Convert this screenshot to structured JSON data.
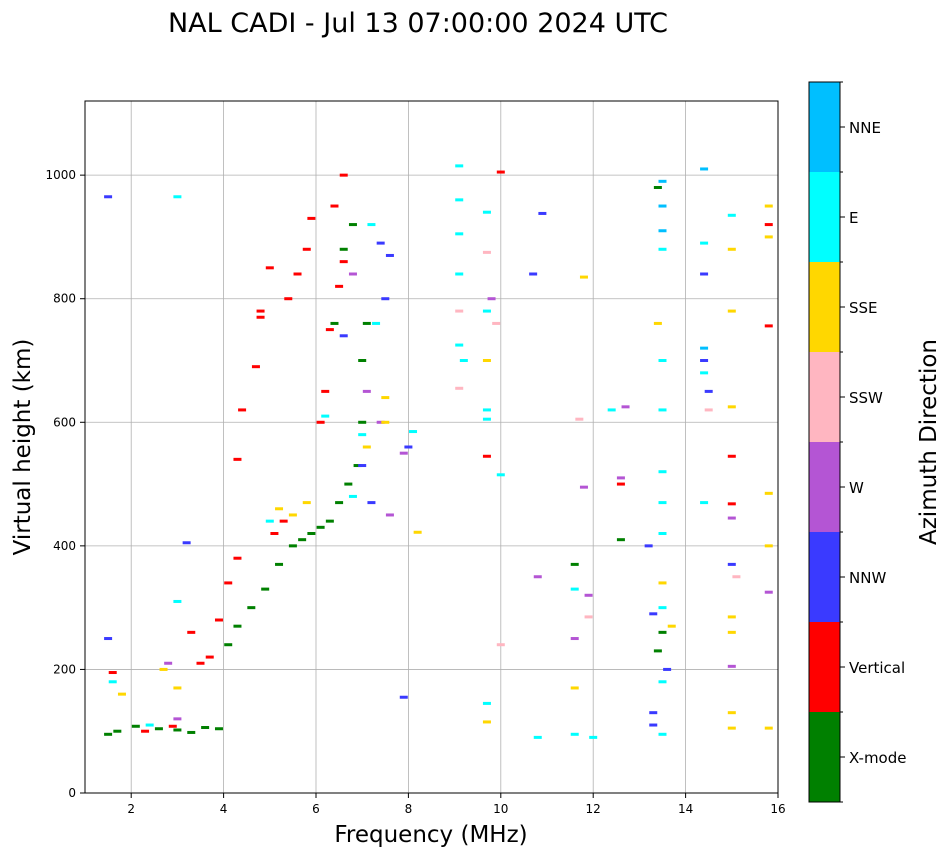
{
  "chart_data": {
    "type": "scatter",
    "title": "NAL CADI - Jul 13 07:00:00 2024 UTC",
    "xlabel": "Frequency (MHz)",
    "ylabel": "Virtual height (km)",
    "xlim": [
      1,
      16
    ],
    "ylim": [
      0,
      1120
    ],
    "xticks": [
      2,
      4,
      6,
      8,
      10,
      12,
      14,
      16
    ],
    "yticks": [
      0,
      200,
      400,
      600,
      800,
      1000
    ],
    "grid": true,
    "legend_position": "right colorbar",
    "colorbar": {
      "label": "Azimuth Direction",
      "categories": [
        {
          "name": "X-mode",
          "color": "#008000"
        },
        {
          "name": "Vertical",
          "color": "#ff0000"
        },
        {
          "name": "NNW",
          "color": "#3a3aff"
        },
        {
          "name": "W",
          "color": "#b455d4"
        },
        {
          "name": "SSW",
          "color": "#ffb6c1"
        },
        {
          "name": "SSE",
          "color": "#ffd700"
        },
        {
          "name": "E",
          "color": "#00ffff"
        },
        {
          "name": "NNE",
          "color": "#00bfff"
        }
      ]
    },
    "series": [
      {
        "name": "X-mode",
        "points": [
          [
            1.5,
            95
          ],
          [
            1.7,
            100
          ],
          [
            2.1,
            108
          ],
          [
            2.6,
            104
          ],
          [
            3.0,
            102
          ],
          [
            3.3,
            98
          ],
          [
            3.6,
            106
          ],
          [
            3.9,
            104
          ],
          [
            4.1,
            240
          ],
          [
            4.3,
            270
          ],
          [
            4.6,
            300
          ],
          [
            4.9,
            330
          ],
          [
            5.2,
            370
          ],
          [
            5.5,
            400
          ],
          [
            5.7,
            410
          ],
          [
            5.9,
            420
          ],
          [
            6.1,
            430
          ],
          [
            6.3,
            440
          ],
          [
            6.5,
            470
          ],
          [
            6.7,
            500
          ],
          [
            6.9,
            530
          ],
          [
            7.0,
            600
          ],
          [
            7.0,
            700
          ],
          [
            6.6,
            880
          ],
          [
            6.8,
            920
          ],
          [
            6.4,
            760
          ],
          [
            7.1,
            760
          ],
          [
            11.6,
            370
          ],
          [
            12.6,
            410
          ],
          [
            13.4,
            230
          ],
          [
            13.4,
            980
          ],
          [
            13.5,
            260
          ]
        ]
      },
      {
        "name": "Vertical",
        "points": [
          [
            1.6,
            195
          ],
          [
            2.3,
            100
          ],
          [
            2.9,
            108
          ],
          [
            3.3,
            260
          ],
          [
            3.5,
            210
          ],
          [
            3.7,
            220
          ],
          [
            3.9,
            280
          ],
          [
            4.1,
            340
          ],
          [
            4.3,
            380
          ],
          [
            4.3,
            540
          ],
          [
            4.4,
            620
          ],
          [
            4.7,
            690
          ],
          [
            4.8,
            770
          ],
          [
            4.8,
            780
          ],
          [
            5.0,
            850
          ],
          [
            5.4,
            800
          ],
          [
            5.6,
            840
          ],
          [
            5.8,
            880
          ],
          [
            5.9,
            930
          ],
          [
            6.1,
            600
          ],
          [
            6.2,
            650
          ],
          [
            6.3,
            750
          ],
          [
            6.5,
            820
          ],
          [
            6.6,
            860
          ],
          [
            6.4,
            950
          ],
          [
            6.6,
            1000
          ],
          [
            5.1,
            420
          ],
          [
            5.3,
            440
          ],
          [
            9.7,
            545
          ],
          [
            10.0,
            1005
          ],
          [
            12.6,
            500
          ],
          [
            15.0,
            545
          ],
          [
            15.0,
            468
          ],
          [
            15.8,
            920
          ],
          [
            15.8,
            756
          ]
        ]
      },
      {
        "name": "NNW",
        "points": [
          [
            1.5,
            250
          ],
          [
            1.5,
            965
          ],
          [
            3.2,
            405
          ],
          [
            6.6,
            740
          ],
          [
            7.0,
            530
          ],
          [
            7.2,
            470
          ],
          [
            7.4,
            890
          ],
          [
            7.5,
            800
          ],
          [
            7.6,
            870
          ],
          [
            7.9,
            155
          ],
          [
            8.0,
            560
          ],
          [
            10.7,
            840
          ],
          [
            10.9,
            938
          ],
          [
            13.2,
            400
          ],
          [
            13.3,
            130
          ],
          [
            13.3,
            110
          ],
          [
            13.3,
            290
          ],
          [
            13.6,
            200
          ],
          [
            14.4,
            840
          ],
          [
            14.4,
            700
          ],
          [
            14.5,
            650
          ],
          [
            15.0,
            370
          ]
        ]
      },
      {
        "name": "W",
        "points": [
          [
            2.8,
            210
          ],
          [
            3.0,
            120
          ],
          [
            6.8,
            840
          ],
          [
            7.1,
            650
          ],
          [
            7.4,
            600
          ],
          [
            7.6,
            450
          ],
          [
            7.9,
            550
          ],
          [
            9.8,
            800
          ],
          [
            10.8,
            350
          ],
          [
            11.6,
            250
          ],
          [
            11.8,
            495
          ],
          [
            11.9,
            320
          ],
          [
            12.6,
            510
          ],
          [
            12.7,
            625
          ],
          [
            15.0,
            445
          ],
          [
            15.0,
            205
          ],
          [
            15.8,
            325
          ]
        ]
      },
      {
        "name": "SSW",
        "points": [
          [
            9.1,
            655
          ],
          [
            9.1,
            780
          ],
          [
            9.7,
            875
          ],
          [
            9.9,
            760
          ],
          [
            10.0,
            240
          ],
          [
            11.7,
            605
          ],
          [
            11.9,
            285
          ],
          [
            14.5,
            620
          ],
          [
            15.1,
            350
          ]
        ]
      },
      {
        "name": "SSE",
        "points": [
          [
            1.8,
            160
          ],
          [
            2.7,
            200
          ],
          [
            3.0,
            170
          ],
          [
            5.2,
            460
          ],
          [
            5.5,
            450
          ],
          [
            5.8,
            470
          ],
          [
            7.1,
            560
          ],
          [
            7.5,
            640
          ],
          [
            7.5,
            600
          ],
          [
            8.2,
            422
          ],
          [
            9.7,
            700
          ],
          [
            9.7,
            115
          ],
          [
            11.6,
            170
          ],
          [
            11.8,
            835
          ],
          [
            13.4,
            760
          ],
          [
            13.5,
            340
          ],
          [
            13.7,
            270
          ],
          [
            15.0,
            780
          ],
          [
            15.0,
            625
          ],
          [
            15.0,
            880
          ],
          [
            15.0,
            285
          ],
          [
            15.0,
            260
          ],
          [
            15.0,
            130
          ],
          [
            15.0,
            105
          ],
          [
            15.8,
            950
          ],
          [
            15.8,
            900
          ],
          [
            15.8,
            485
          ],
          [
            15.8,
            400
          ],
          [
            15.8,
            105
          ]
        ]
      },
      {
        "name": "E",
        "points": [
          [
            1.6,
            180
          ],
          [
            2.4,
            110
          ],
          [
            3.0,
            965
          ],
          [
            3.0,
            310
          ],
          [
            5.0,
            440
          ],
          [
            6.2,
            610
          ],
          [
            6.8,
            480
          ],
          [
            7.0,
            580
          ],
          [
            7.2,
            920
          ],
          [
            7.3,
            760
          ],
          [
            8.1,
            585
          ],
          [
            9.1,
            1015
          ],
          [
            9.1,
            960
          ],
          [
            9.1,
            905
          ],
          [
            9.1,
            840
          ],
          [
            9.1,
            725
          ],
          [
            9.2,
            700
          ],
          [
            9.7,
            940
          ],
          [
            9.7,
            780
          ],
          [
            9.7,
            620
          ],
          [
            9.7,
            605
          ],
          [
            9.7,
            145
          ],
          [
            10.0,
            515
          ],
          [
            11.6,
            330
          ],
          [
            11.6,
            95
          ],
          [
            12.4,
            620
          ],
          [
            12.0,
            90
          ],
          [
            13.5,
            880
          ],
          [
            13.5,
            700
          ],
          [
            13.5,
            620
          ],
          [
            13.5,
            520
          ],
          [
            13.5,
            470
          ],
          [
            13.5,
            420
          ],
          [
            13.5,
            300
          ],
          [
            13.5,
            180
          ],
          [
            13.5,
            95
          ],
          [
            14.4,
            890
          ],
          [
            14.4,
            680
          ],
          [
            14.4,
            470
          ],
          [
            15.0,
            935
          ],
          [
            10.8,
            90
          ]
        ]
      },
      {
        "name": "NNE",
        "points": [
          [
            13.5,
            990
          ],
          [
            13.5,
            950
          ],
          [
            13.5,
            910
          ],
          [
            14.4,
            1010
          ],
          [
            14.4,
            720
          ]
        ]
      }
    ]
  }
}
